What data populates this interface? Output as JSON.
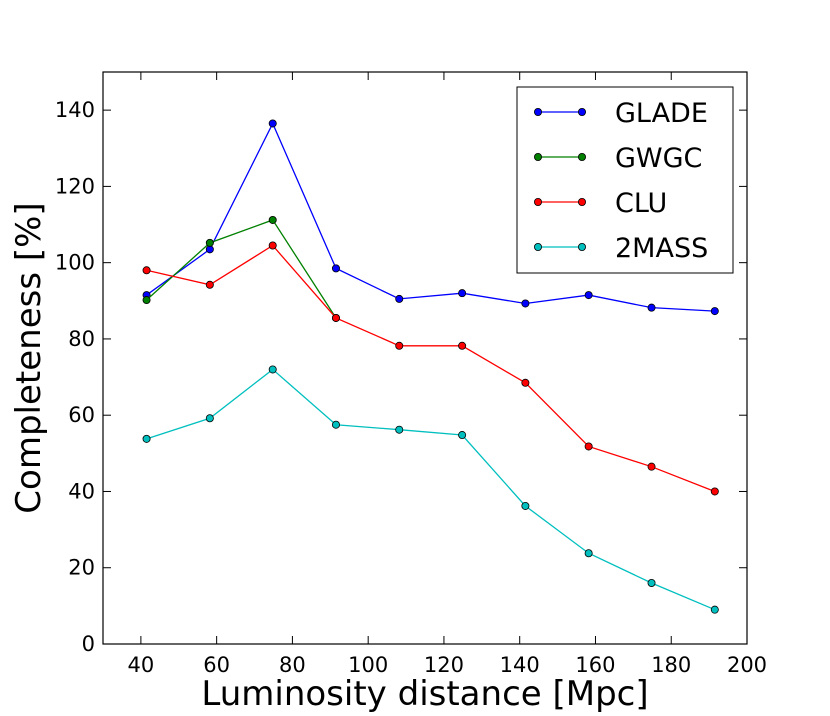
{
  "chart_data": {
    "type": "line",
    "title": "",
    "xlabel": "Luminosity distance [Mpc]",
    "ylabel": "Completeness [%]",
    "xlim": [
      30,
      200
    ],
    "ylim": [
      0,
      150
    ],
    "xticks": [
      40,
      60,
      80,
      100,
      120,
      140,
      160,
      180,
      200
    ],
    "yticks": [
      0,
      20,
      40,
      60,
      80,
      100,
      120,
      140
    ],
    "grid": false,
    "legend_position": "top-right",
    "series": [
      {
        "name": "GLADE",
        "color": "#0000ff",
        "x": [
          41.5,
          58.2,
          74.8,
          91.5,
          108.2,
          124.8,
          141.5,
          158.2,
          174.8,
          191.5
        ],
        "y": [
          91.5,
          103.5,
          136.5,
          98.5,
          90.5,
          92.0,
          89.3,
          91.5,
          88.2,
          87.3
        ]
      },
      {
        "name": "GWGC",
        "color": "#008000",
        "x": [
          41.5,
          58.2,
          74.8,
          91.5
        ],
        "y": [
          90.2,
          105.2,
          111.2,
          85.5
        ]
      },
      {
        "name": "CLU",
        "color": "#ff0000",
        "x": [
          41.5,
          58.2,
          74.8,
          91.5,
          108.2,
          124.8,
          141.5,
          158.2,
          174.8,
          191.5
        ],
        "y": [
          98.0,
          94.2,
          104.5,
          85.5,
          78.2,
          78.2,
          68.5,
          51.8,
          46.5,
          40.0
        ]
      },
      {
        "name": "2MASS",
        "color": "#00bfbf",
        "x": [
          41.5,
          58.2,
          74.8,
          91.5,
          108.2,
          124.8,
          141.5,
          158.2,
          174.8,
          191.5
        ],
        "y": [
          53.8,
          59.2,
          72.0,
          57.5,
          56.2,
          54.8,
          36.2,
          23.8,
          16.0,
          9.0
        ]
      }
    ]
  }
}
